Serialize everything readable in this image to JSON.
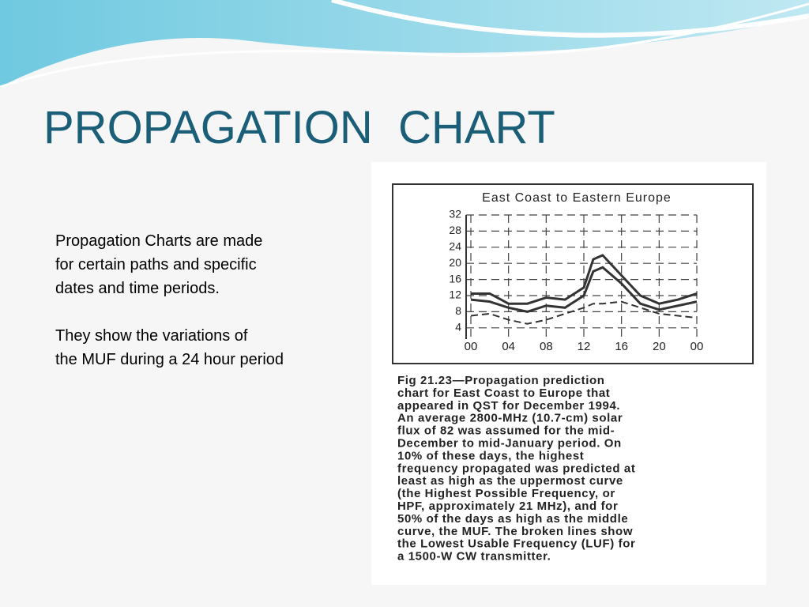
{
  "slide": {
    "title": "PROPAGATION  CHART",
    "body": [
      [
        "Propagation Charts are made",
        "for certain paths and specific",
        "dates and time periods."
      ],
      [
        "They show the variations of",
        "the MUF during a 24 hour period"
      ]
    ],
    "caption": [
      "Fig 21.23—Propagation prediction",
      "chart for East Coast to Europe that",
      "appeared in QST for December 1994.",
      "An average 2800-MHz (10.7-cm) solar",
      "flux of 82 was assumed for the mid-",
      "December to mid-January period. On",
      "10% of these days, the highest",
      "frequency propagated was predicted at",
      "least as high as the uppermost curve",
      "(the Highest Possible Frequency, or",
      "HPF, approximately 21 MHz), and for",
      "50% of the days as high as the middle",
      "curve, the MUF. The broken lines show",
      "the Lowest Usable Frequency (LUF) for",
      "a 1500-W CW transmitter."
    ]
  },
  "chart_data": {
    "type": "line",
    "title": "East Coast to Eastern Europe",
    "x": [
      0,
      2,
      4,
      6,
      8,
      10,
      12,
      13,
      14,
      16,
      18,
      20,
      22,
      24
    ],
    "series": [
      {
        "color": "#333333",
        "dashed": false,
        "values": [
          12.5,
          12.5,
          10,
          10,
          11.5,
          11,
          14,
          21,
          22,
          17,
          12,
          10,
          11,
          12.5
        ]
      },
      {
        "color": "#333333",
        "dashed": false,
        "values": [
          11,
          10.5,
          9,
          8,
          9.5,
          9,
          12,
          18,
          19,
          15,
          10,
          8.5,
          9.5,
          10.5
        ]
      },
      {
        "color": "#333333",
        "dashed": true,
        "values": [
          7,
          7.5,
          6,
          5,
          6,
          7.5,
          9,
          10,
          10,
          10.5,
          9,
          7.5,
          7,
          6.5
        ]
      }
    ],
    "xlim": [
      0,
      24
    ],
    "xticks": [
      {
        "value": 0,
        "label": "00"
      },
      {
        "value": 4,
        "label": "04"
      },
      {
        "value": 8,
        "label": "08"
      },
      12,
      16,
      20,
      {
        "value": 24,
        "label": "00"
      }
    ],
    "ylim": [
      2,
      32
    ],
    "yticks": [
      4,
      8,
      12,
      16,
      20,
      24,
      28,
      32
    ],
    "grid": true
  }
}
